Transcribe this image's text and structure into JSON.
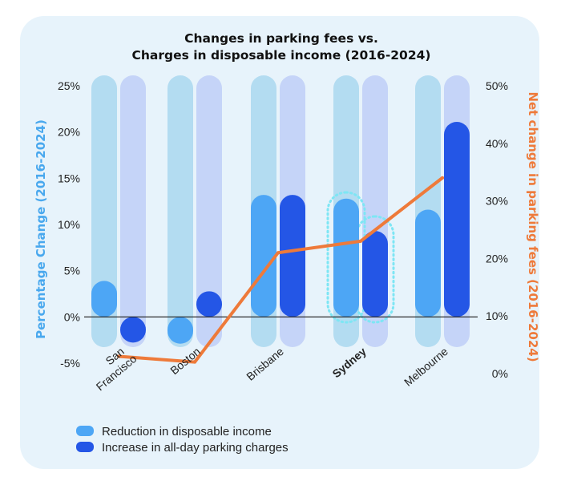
{
  "chart_data": {
    "type": "bar",
    "title_line1": "Changes in parking fees vs.",
    "title_line2": "Charges in disposable income (2016-2024)",
    "categories": [
      "San Francisco",
      "Boston",
      "Brisbane",
      "Sydney",
      "Melbourne"
    ],
    "category_lines": [
      [
        "San",
        "Francisco"
      ],
      [
        "Boston"
      ],
      [
        "Brisbane"
      ],
      [
        "Sydney"
      ],
      [
        "Melbourne"
      ]
    ],
    "highlight_category": "Sydney",
    "series": [
      {
        "name": "Reduction in disposable income",
        "color": "#4da6f5",
        "values": [
          3.9,
          -2.9,
          13.2,
          12.8,
          11.6
        ]
      },
      {
        "name": "Increase in all-day parking charges",
        "color": "#2456e6",
        "values": [
          -2.7,
          2.7,
          13.2,
          9.3,
          21.1
        ]
      }
    ],
    "line_series": {
      "color": "#ee7a3a",
      "values": [
        3,
        2,
        21,
        23,
        34
      ]
    },
    "ylabel": "Percentage Change (2016-2024)",
    "ylabel_color": "#49a8ee",
    "y2label": "Net change in parking fees (2016-2024)",
    "y2label_color": "#ee7a3a",
    "ylim": [
      -5,
      25
    ],
    "y_ticks": [
      "-5%",
      "0%",
      "5%",
      "10%",
      "15%",
      "20%",
      "25%"
    ],
    "y_tick_values": [
      -5,
      0,
      5,
      10,
      15,
      20,
      25
    ],
    "y2lim": [
      0,
      50
    ],
    "y2_ticks": [
      "0%",
      "10%",
      "20%",
      "30%",
      "40%",
      "50%"
    ],
    "y2_tick_values": [
      0,
      10,
      20,
      30,
      40,
      50
    ],
    "track_colors": [
      "#b3dcf1",
      "#c5d4f8"
    ],
    "highlight_color": "#7ee6f4",
    "legend_position": "bottom-left",
    "grid": false
  }
}
